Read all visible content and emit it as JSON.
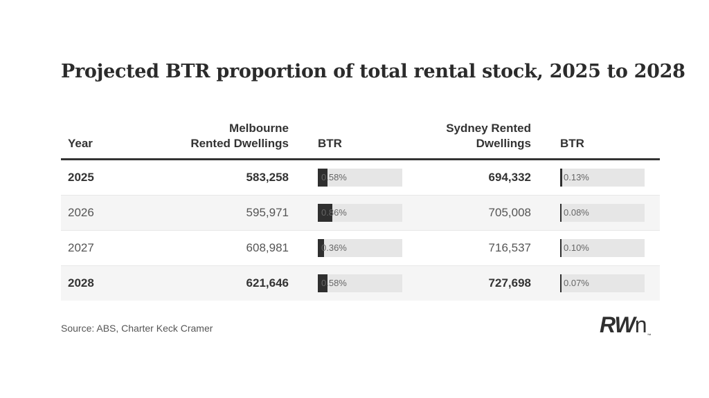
{
  "title": "Projected BTR proportion of total rental stock, 2025 to 2028",
  "headers": {
    "year": "Year",
    "melb_line1": "Melbourne",
    "melb_line2": "Rented Dwellings",
    "btr1": "BTR",
    "syd_line1": "Sydney Rented",
    "syd_line2": "Dwellings",
    "btr2": "BTR"
  },
  "chart_data": {
    "type": "table",
    "title": "Projected BTR proportion of total rental stock, 2025 to 2028",
    "columns": [
      "Year",
      "Melbourne Rented Dwellings",
      "BTR",
      "Sydney Rented Dwellings",
      "BTR"
    ],
    "rows": [
      {
        "year": "2025",
        "melb": "583,258",
        "melb_btr": "0.58%",
        "melb_btr_value": 0.58,
        "syd": "694,332",
        "syd_btr": "0.13%",
        "syd_btr_value": 0.13,
        "bold": true
      },
      {
        "year": "2026",
        "melb": "595,971",
        "melb_btr": "0.86%",
        "melb_btr_value": 0.86,
        "syd": "705,008",
        "syd_btr": "0.08%",
        "syd_btr_value": 0.08,
        "bold": false
      },
      {
        "year": "2027",
        "melb": "608,981",
        "melb_btr": "0.36%",
        "melb_btr_value": 0.36,
        "syd": "716,537",
        "syd_btr": "0.10%",
        "syd_btr_value": 0.1,
        "bold": false
      },
      {
        "year": "2028",
        "melb": "621,646",
        "melb_btr": "0.58%",
        "melb_btr_value": 0.58,
        "syd": "727,698",
        "syd_btr": "0.07%",
        "syd_btr_value": 0.07,
        "bold": true
      }
    ]
  },
  "source": "Source: ABS, Charter Keck Cramer",
  "logo": {
    "main": "RW",
    "tail": "n",
    "tm": "™"
  },
  "colors": {
    "bar": "#2f2f2f",
    "bar_bg": "#e6e6e6",
    "rule": "#333333"
  }
}
